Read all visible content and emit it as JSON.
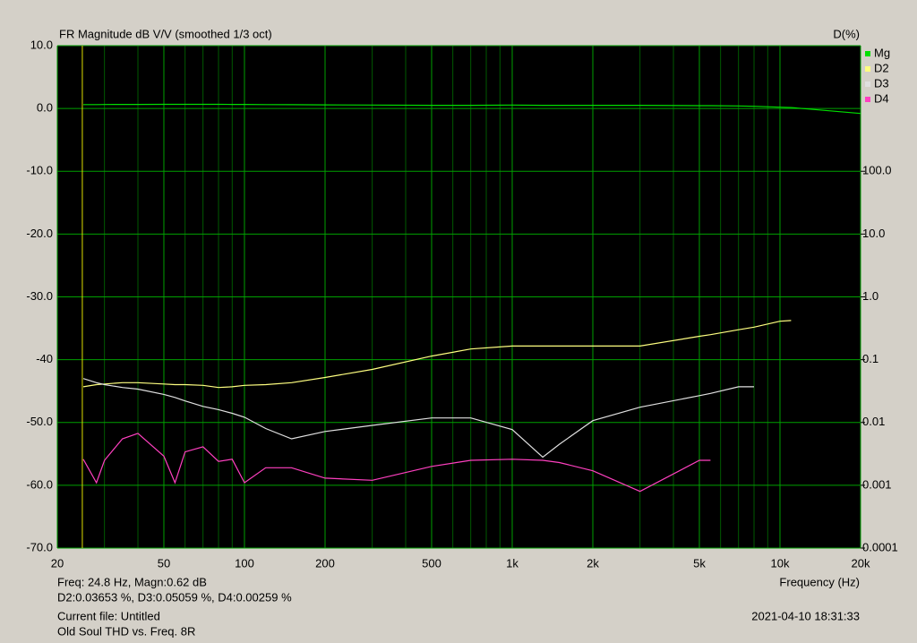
{
  "chart_data": {
    "type": "line",
    "title": "FR Magnitude dB V/V (smoothed 1/3 oct)",
    "y2_label": "D(%)",
    "x_label": "Frequency (Hz)",
    "x_log": true,
    "y2_log": true,
    "grid": true,
    "legend": "right",
    "xlim": [
      20,
      20000
    ],
    "xticks": [
      20,
      50,
      100,
      200,
      500,
      {
        "value": 1000,
        "label": "1k"
      },
      {
        "value": 2000,
        "label": "2k"
      },
      {
        "value": 5000,
        "label": "5k"
      },
      {
        "value": 10000,
        "label": "10k"
      },
      {
        "value": 20000,
        "label": "20k"
      }
    ],
    "xminor_ticks": [
      30,
      40,
      60,
      70,
      80,
      90,
      300,
      400,
      600,
      700,
      800,
      900,
      3000,
      4000,
      6000,
      7000,
      8000,
      9000
    ],
    "ylim": [
      -70,
      10
    ],
    "yticks": [
      {
        "value": 10,
        "label": "10.0"
      },
      {
        "value": 0,
        "label": "0.0"
      },
      {
        "value": -10,
        "label": "-10.0"
      },
      {
        "value": -20,
        "label": "-20.0"
      },
      {
        "value": -30,
        "label": "-30.0"
      },
      {
        "value": -40,
        "label": "-40"
      },
      {
        "value": -50,
        "label": "-50.0"
      },
      {
        "value": -60,
        "label": "-60.0"
      },
      {
        "value": -70,
        "label": "-70.0"
      }
    ],
    "y2lim": [
      0.0001,
      10000
    ],
    "y2ticks": [
      {
        "value": 100,
        "label": "100.0"
      },
      {
        "value": 10,
        "label": "10.0"
      },
      {
        "value": 1,
        "label": "1.0"
      },
      0.1,
      0.01,
      0.001,
      0.0001
    ],
    "cursor_freq": 24.8,
    "x": [
      25,
      28,
      30,
      35,
      40,
      50,
      55,
      60,
      70,
      80,
      90,
      100,
      120,
      150,
      200,
      300,
      500,
      700,
      1000,
      1300,
      1500,
      2000,
      3000,
      5000,
      5500,
      7000,
      8000,
      10000,
      11000,
      20000
    ],
    "series": [
      {
        "name": "Mg",
        "color": "#00e000",
        "values": [
          0.62,
          0.62,
          0.63,
          0.64,
          0.65,
          0.66,
          0.66,
          0.66,
          0.66,
          0.66,
          0.65,
          0.65,
          0.62,
          0.6,
          0.58,
          0.55,
          0.5,
          0.5,
          0.55,
          0.5,
          0.5,
          0.5,
          0.5,
          0.45,
          0.45,
          0.4,
          0.35,
          0.2,
          0.15,
          -0.8
        ]
      },
      {
        "name": "D2",
        "color": "#ffff80",
        "axis": "y2",
        "values": [
          0.037,
          0.04,
          0.041,
          0.043,
          0.043,
          0.041,
          0.04,
          0.04,
          0.039,
          0.036,
          0.037,
          0.039,
          0.04,
          0.043,
          0.052,
          0.07,
          0.114,
          0.148,
          0.165,
          0.165,
          0.165,
          0.165,
          0.165,
          0.236,
          0.25,
          0.3,
          0.33,
          0.41,
          0.42,
          null
        ]
      },
      {
        "name": "D3",
        "color": "#e0e0e0",
        "axis": "y2",
        "values": [
          0.05,
          0.043,
          0.04,
          0.036,
          0.034,
          0.028,
          0.025,
          0.022,
          0.018,
          0.016,
          0.014,
          0.0121,
          0.008,
          0.0055,
          0.0072,
          0.009,
          0.0118,
          0.0118,
          0.0077,
          0.0028,
          0.0045,
          0.0107,
          0.0175,
          0.0267,
          0.029,
          0.037,
          0.037,
          null,
          null,
          null
        ]
      },
      {
        "name": "D4",
        "color": "#ff40c0",
        "axis": "y2",
        "values": [
          0.0026,
          0.0011,
          0.0025,
          0.0055,
          0.0067,
          0.0029,
          0.0011,
          0.0034,
          0.0041,
          0.0024,
          0.0026,
          0.0011,
          0.0019,
          0.0019,
          0.0013,
          0.0012,
          0.002,
          0.0025,
          0.0026,
          0.0025,
          0.0023,
          0.0017,
          0.0008,
          0.0025,
          0.0025,
          null,
          null,
          null,
          null,
          null
        ]
      }
    ]
  },
  "status": {
    "cursor_line": "Freq: 24.8 Hz, Magn:0.62 dB",
    "distortion_line": "D2:0.03653 %, D3:0.05059 %, D4:0.00259 %",
    "current_file": "Current file: Untitled",
    "description": "Old Soul THD vs. Freq. 8R",
    "timestamp": "2021-04-10  18:31:33"
  }
}
